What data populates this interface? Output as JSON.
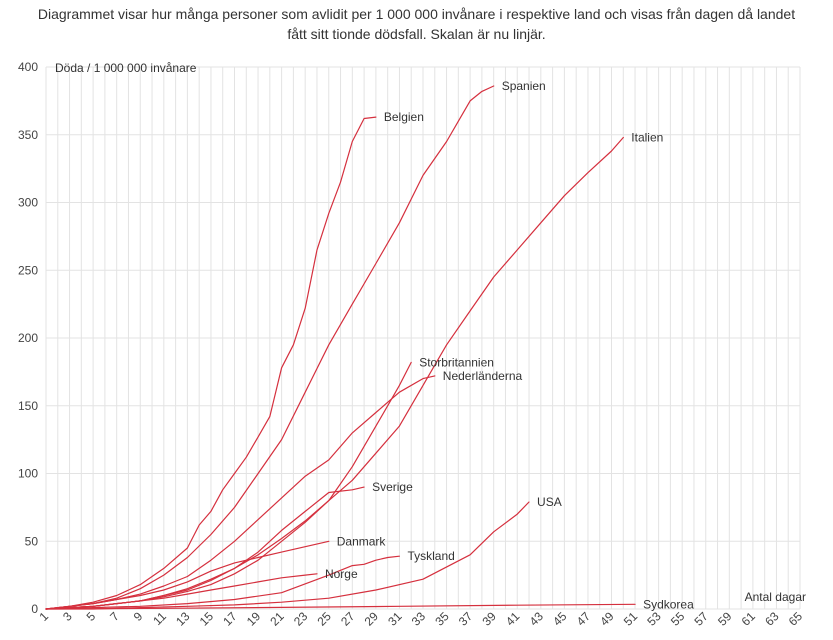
{
  "chart_data": {
    "type": "line",
    "subtitle_lines": [
      "Diagrammet visar hur många personer som avlidit per 1 000 000 invånare i respektive land och visas från dagen då landet",
      "fått sitt tionde dödsfall. Skalan är nu linjär."
    ],
    "ylabel": "Döda / 1 000 000 invånare",
    "xlabel": "Antal dagar",
    "xlim": [
      1,
      65
    ],
    "ylim": [
      0,
      400
    ],
    "x_ticks": [
      1,
      3,
      5,
      7,
      9,
      11,
      13,
      15,
      17,
      19,
      21,
      23,
      25,
      27,
      29,
      31,
      33,
      35,
      37,
      39,
      41,
      43,
      45,
      47,
      49,
      51,
      53,
      55,
      57,
      59,
      61,
      63,
      65
    ],
    "y_ticks": [
      0,
      50,
      100,
      150,
      200,
      250,
      300,
      350,
      400
    ],
    "grid": true,
    "line_color": "#d5303e",
    "series": [
      {
        "name": "Spanien",
        "x": [
          1,
          3,
          5,
          7,
          9,
          11,
          13,
          15,
          17,
          19,
          21,
          23,
          25,
          27,
          29,
          31,
          33,
          35,
          37,
          38,
          39
        ],
        "y": [
          0,
          2,
          4,
          8,
          15,
          25,
          38,
          55,
          75,
          100,
          125,
          160,
          195,
          225,
          255,
          285,
          320,
          345,
          375,
          382,
          386
        ]
      },
      {
        "name": "Belgien",
        "x": [
          1,
          3,
          5,
          7,
          9,
          11,
          13,
          14,
          15,
          16,
          17,
          18,
          19,
          20,
          21,
          22,
          23,
          24,
          25,
          26,
          27,
          28,
          29
        ],
        "y": [
          0,
          2,
          5,
          10,
          18,
          30,
          45,
          62,
          72,
          88,
          100,
          112,
          127,
          142,
          178,
          195,
          222,
          265,
          292,
          315,
          345,
          362,
          363
        ]
      },
      {
        "name": "Italien",
        "x": [
          1,
          3,
          5,
          7,
          9,
          11,
          13,
          15,
          17,
          19,
          21,
          23,
          25,
          27,
          29,
          31,
          33,
          35,
          37,
          39,
          41,
          43,
          45,
          47,
          49,
          50
        ],
        "y": [
          0,
          1,
          2,
          4,
          6,
          10,
          15,
          22,
          30,
          40,
          52,
          65,
          80,
          95,
          115,
          135,
          165,
          195,
          220,
          245,
          265,
          285,
          305,
          322,
          338,
          348
        ]
      },
      {
        "name": "Storbritannien",
        "x": [
          1,
          3,
          5,
          7,
          9,
          11,
          13,
          15,
          17,
          19,
          21,
          23,
          25,
          27,
          29,
          31,
          32
        ],
        "y": [
          0,
          1,
          2,
          4,
          6,
          9,
          13,
          18,
          26,
          36,
          50,
          64,
          80,
          105,
          135,
          165,
          182
        ]
      },
      {
        "name": "Nederländerna",
        "x": [
          1,
          3,
          5,
          7,
          9,
          11,
          13,
          15,
          17,
          19,
          21,
          23,
          25,
          27,
          29,
          31,
          33,
          34
        ],
        "y": [
          0,
          2,
          4,
          7,
          11,
          17,
          24,
          36,
          50,
          66,
          82,
          98,
          110,
          130,
          145,
          160,
          170,
          172
        ]
      },
      {
        "name": "Sverige",
        "x": [
          1,
          3,
          5,
          7,
          9,
          11,
          13,
          15,
          17,
          19,
          21,
          23,
          25,
          27,
          28
        ],
        "y": [
          0,
          1,
          2,
          4,
          6,
          10,
          14,
          21,
          30,
          42,
          58,
          72,
          86,
          88,
          90
        ]
      },
      {
        "name": "USA",
        "x": [
          1,
          5,
          9,
          13,
          17,
          21,
          25,
          29,
          33,
          37,
          39,
          41,
          42
        ],
        "y": [
          0,
          0,
          1,
          2,
          3,
          5,
          8,
          14,
          22,
          40,
          57,
          70,
          79
        ]
      },
      {
        "name": "Danmark",
        "x": [
          1,
          3,
          5,
          7,
          9,
          11,
          13,
          15,
          17,
          19,
          21,
          23,
          25
        ],
        "y": [
          0,
          2,
          4,
          7,
          10,
          14,
          20,
          28,
          34,
          38,
          42,
          46,
          50
        ]
      },
      {
        "name": "Tyskland",
        "x": [
          1,
          5,
          9,
          13,
          17,
          21,
          25,
          27,
          28,
          29,
          30,
          31
        ],
        "y": [
          0,
          1,
          2,
          4,
          7,
          12,
          25,
          32,
          33,
          36,
          38,
          39
        ]
      },
      {
        "name": "Norge",
        "x": [
          1,
          3,
          5,
          7,
          9,
          11,
          13,
          15,
          17,
          19,
          21,
          23,
          24
        ],
        "y": [
          0,
          1,
          2,
          4,
          6,
          8,
          11,
          14,
          17,
          20,
          23,
          25,
          26
        ]
      },
      {
        "name": "Sydkorea",
        "x": [
          1,
          11,
          21,
          31,
          41,
          51
        ],
        "y": [
          0,
          0.5,
          1.2,
          2,
          2.8,
          3.5
        ]
      }
    ]
  }
}
